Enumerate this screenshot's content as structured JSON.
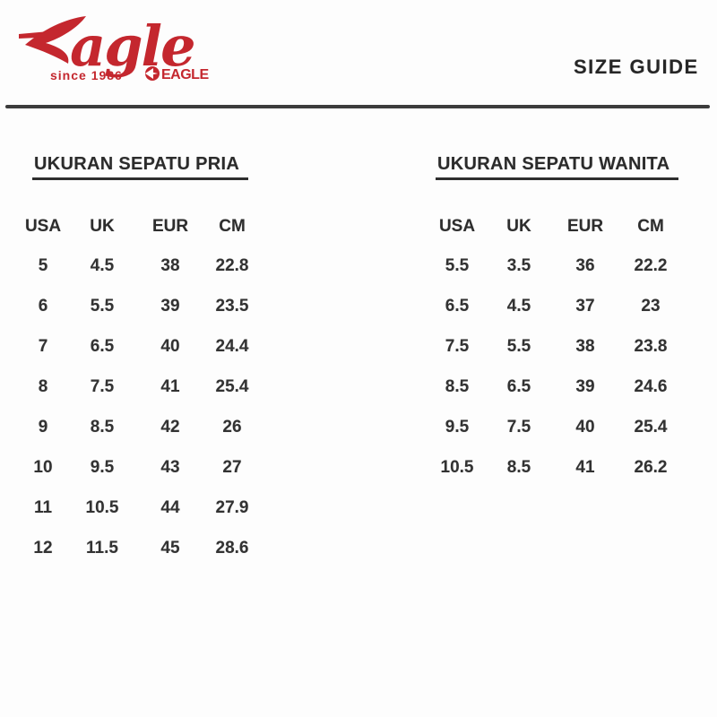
{
  "page": {
    "title": "SIZE GUIDE",
    "background": "#fdfdfd",
    "divider_color": "#3c3c3c",
    "text_color": "#2e2e2e"
  },
  "logo": {
    "brand": "Eagle",
    "brand_tail": "agle",
    "since": "since 1986",
    "submark": "EAGLE",
    "color": "#c4272e"
  },
  "tables": [
    {
      "title": "UKURAN SEPATU PRIA",
      "columns": [
        "USA",
        "UK",
        "EUR",
        "CM"
      ],
      "rows": [
        [
          "5",
          "4.5",
          "38",
          "22.8"
        ],
        [
          "6",
          "5.5",
          "39",
          "23.5"
        ],
        [
          "7",
          "6.5",
          "40",
          "24.4"
        ],
        [
          "8",
          "7.5",
          "41",
          "25.4"
        ],
        [
          "9",
          "8.5",
          "42",
          "26"
        ],
        [
          "10",
          "9.5",
          "43",
          "27"
        ],
        [
          "11",
          "10.5",
          "44",
          "27.9"
        ],
        [
          "12",
          "11.5",
          "45",
          "28.6"
        ]
      ]
    },
    {
      "title": "UKURAN SEPATU WANITA",
      "columns": [
        "USA",
        "UK",
        "EUR",
        "CM"
      ],
      "rows": [
        [
          "5.5",
          "3.5",
          "36",
          "22.2"
        ],
        [
          "6.5",
          "4.5",
          "37",
          "23"
        ],
        [
          "7.5",
          "5.5",
          "38",
          "23.8"
        ],
        [
          "8.5",
          "6.5",
          "39",
          "24.6"
        ],
        [
          "9.5",
          "7.5",
          "40",
          "25.4"
        ],
        [
          "10.5",
          "8.5",
          "41",
          "26.2"
        ]
      ]
    }
  ]
}
